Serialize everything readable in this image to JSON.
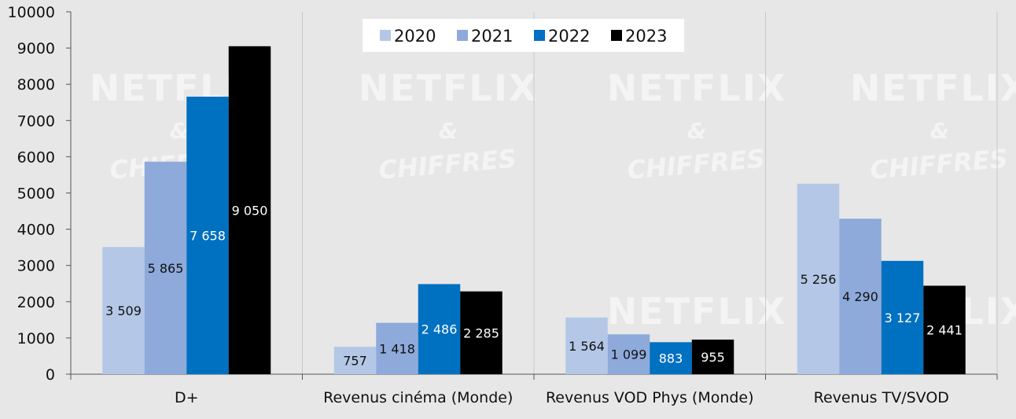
{
  "chart_data": {
    "type": "bar",
    "categories": [
      "D+",
      "Revenus cinéma (Monde)",
      "Revenus VOD Phys (Monde)",
      "Revenus TV/SVOD"
    ],
    "series": [
      {
        "name": "2020",
        "color": "#b4c7e7",
        "label_color": "#111111",
        "values": [
          3509,
          757,
          1564,
          5256
        ],
        "labels": [
          "3 509",
          "757",
          "1 564",
          "5 256"
        ]
      },
      {
        "name": "2021",
        "color": "#8eaadb",
        "label_color": "#111111",
        "values": [
          5865,
          1418,
          1099,
          4290
        ],
        "labels": [
          "5 865",
          "1 418",
          "1 099",
          "4 290"
        ]
      },
      {
        "name": "2022",
        "color": "#0070c0",
        "label_color": "#ffffff",
        "values": [
          7658,
          2486,
          883,
          3127
        ],
        "labels": [
          "7 658",
          "2 486",
          "883",
          "3 127"
        ]
      },
      {
        "name": "2023",
        "color": "#000000",
        "label_color": "#ffffff",
        "values": [
          9050,
          2285,
          955,
          2441
        ],
        "labels": [
          "9 050",
          "2 285",
          "955",
          "2 441"
        ]
      }
    ],
    "ylim": [
      0,
      10000
    ],
    "yticks": [
      0,
      1000,
      2000,
      3000,
      4000,
      5000,
      6000,
      7000,
      8000,
      9000,
      10000
    ],
    "grid": "vertical separators between categories",
    "legend_position": "top-center",
    "title": "",
    "xlabel": "",
    "ylabel": ""
  },
  "watermark": {
    "line1": "NETFLIX",
    "line2": "&",
    "line3": "CHIFFRES"
  },
  "colors": {
    "background": "#e7e7e7",
    "axis": "#555555",
    "separator": "#c8c8c8"
  }
}
